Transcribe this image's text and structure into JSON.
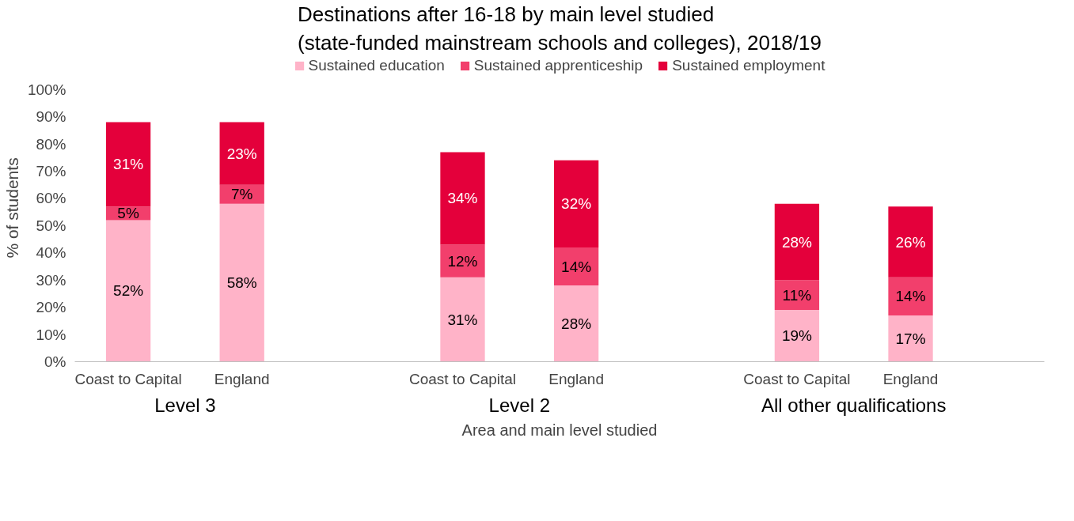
{
  "chart_data": {
    "type": "bar",
    "stacked": true,
    "title": "Destinations after 16-18 by main level studied (state-funded mainstream schools and colleges), 2018/19",
    "xlabel": "Area and main level studied",
    "ylabel": "% of students",
    "categories": [
      "Coast to Capital",
      "England",
      "Coast to Capital",
      "England",
      "Coast to Capital",
      "England"
    ],
    "annotations": [
      "Level 3",
      "Level 2",
      "All other qualifications"
    ],
    "series": [
      {
        "name": "Sustained education",
        "color": "#ffb3c8",
        "values": [
          52,
          58,
          31,
          28,
          19,
          17
        ],
        "value_labels": [
          "52%",
          "58%",
          "31%",
          "28%",
          "19%",
          "17%"
        ]
      },
      {
        "name": "Sustained apprenticeship",
        "color": "#f23f6c",
        "values": [
          5,
          7,
          12,
          14,
          11,
          14
        ],
        "value_labels": [
          "5%",
          "7%",
          "12%",
          "14%",
          "11%",
          "14%"
        ]
      },
      {
        "name": "Sustained employment",
        "color": "#e4003b",
        "values": [
          31,
          23,
          34,
          32,
          28,
          26
        ],
        "value_labels": [
          "31%",
          "23%",
          "34%",
          "32%",
          "28%",
          "26%"
        ]
      }
    ],
    "ylim": [
      0,
      100
    ],
    "yticks": [
      {
        "value": 0,
        "label": "0%"
      },
      {
        "value": 10,
        "label": "10%"
      },
      {
        "value": 20,
        "label": "20%"
      },
      {
        "value": 30,
        "label": "30%"
      },
      {
        "value": 40,
        "label": "40%"
      },
      {
        "value": 50,
        "label": "50%"
      },
      {
        "value": 60,
        "label": "60%"
      },
      {
        "value": 70,
        "label": "70%"
      },
      {
        "value": 80,
        "label": "80%"
      },
      {
        "value": 90,
        "label": "90%"
      },
      {
        "value": 100,
        "label": "100%"
      }
    ],
    "grid": false,
    "legend": "top"
  }
}
